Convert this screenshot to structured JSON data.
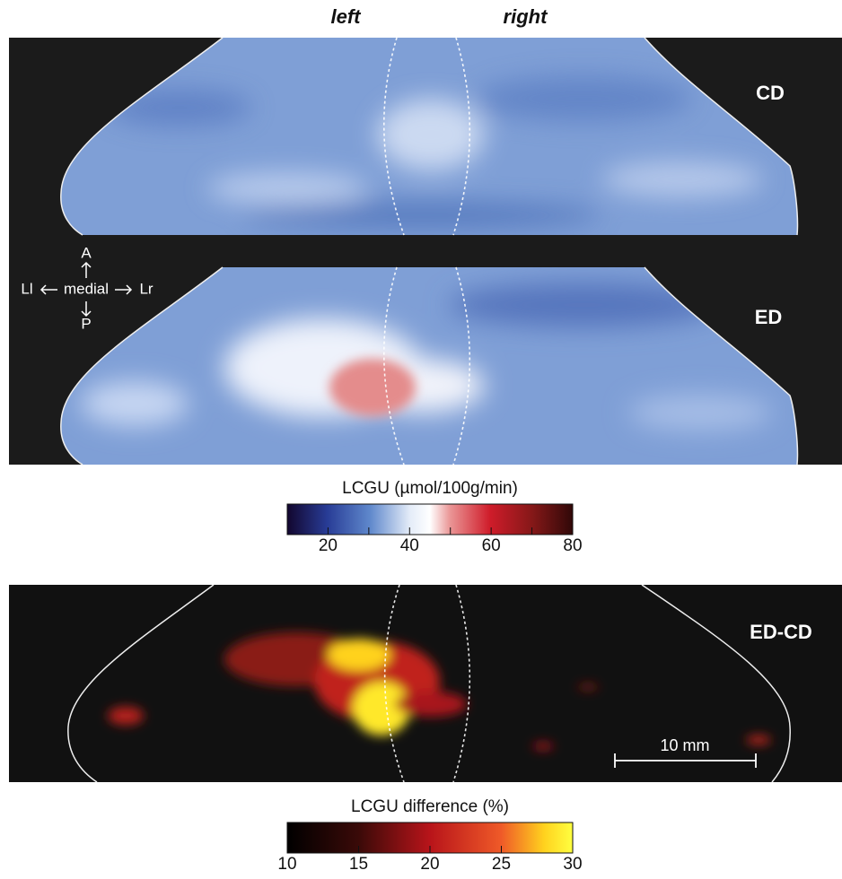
{
  "header": {
    "left": "left",
    "right": "right"
  },
  "panels": [
    {
      "label": "CD"
    },
    {
      "label": "ED"
    },
    {
      "label": "ED-CD"
    }
  ],
  "orientation": {
    "anterior": "A",
    "posterior": "P",
    "left": "Ll",
    "center": "medial",
    "right": "Lr"
  },
  "scale_bar": {
    "label": "10 mm"
  },
  "colorbars": [
    {
      "title": "LCGU (µmol/100g/min)",
      "lim": [
        10,
        80
      ],
      "ticks": [
        20,
        40,
        60,
        80
      ],
      "minor_ticks": [
        30,
        50,
        70
      ]
    },
    {
      "title": "LCGU difference (%)",
      "lim": [
        10,
        30
      ],
      "ticks": [
        10,
        15,
        20,
        25,
        30
      ]
    }
  ]
}
